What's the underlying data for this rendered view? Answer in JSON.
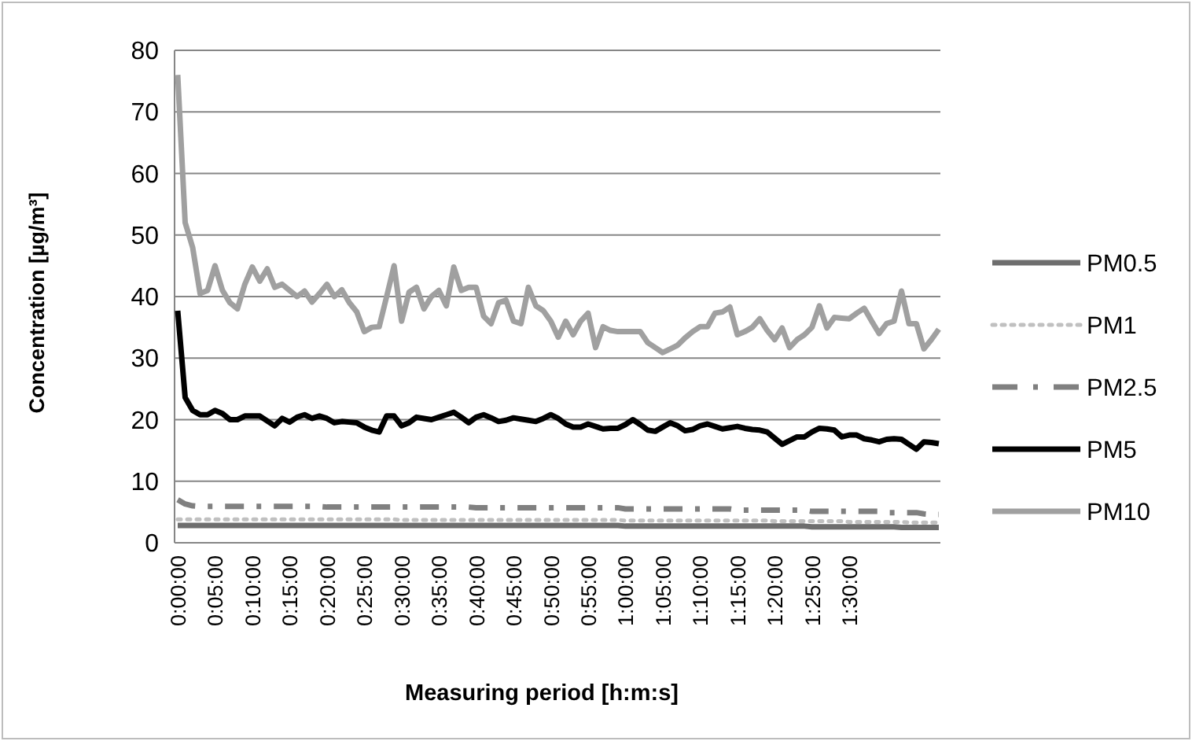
{
  "chart_data": {
    "type": "line",
    "xlabel": "Measuring period [h:m:s]",
    "ylabel": "Concentration [µg/m³]",
    "categories": [
      "0:00:00",
      null,
      null,
      null,
      null,
      "0:05:00",
      null,
      null,
      null,
      null,
      "0:10:00",
      null,
      null,
      null,
      null,
      "0:15:00",
      null,
      null,
      null,
      null,
      "0:20:00",
      null,
      null,
      null,
      null,
      "0:25:00",
      null,
      null,
      null,
      null,
      "0:30:00",
      null,
      null,
      null,
      null,
      "0:35:00",
      null,
      null,
      null,
      null,
      "0:40:00",
      null,
      null,
      null,
      null,
      "0:45:00",
      null,
      null,
      null,
      null,
      "0:50:00",
      null,
      null,
      null,
      null,
      "0:55:00",
      null,
      null,
      null,
      null,
      "1:00:00",
      null,
      null,
      null,
      null,
      "1:05:00",
      null,
      null,
      null,
      null,
      "1:10:00",
      null,
      null,
      null,
      null,
      "1:15:00",
      null,
      null,
      null,
      null,
      "1:20:00",
      null,
      null,
      null,
      null,
      "1:25:00",
      null,
      null,
      null,
      null,
      "1:30:00",
      null,
      null,
      null,
      null,
      null,
      null,
      null,
      null,
      null,
      null,
      null,
      null
    ],
    "ylim": [
      0,
      80
    ],
    "yticks": [
      0,
      10,
      20,
      30,
      40,
      50,
      60,
      70,
      80
    ],
    "grid": "y",
    "legend": "right",
    "marker": "none",
    "series": [
      {
        "name": "PM0.5",
        "color": "#6e6e6e",
        "line_style": "solid",
        "values": [
          2.8,
          2.8,
          2.8,
          2.8,
          2.8,
          2.8,
          2.8,
          2.8,
          2.8,
          2.8,
          2.8,
          2.8,
          2.8,
          2.8,
          2.8,
          2.8,
          2.8,
          2.8,
          2.8,
          2.8,
          2.8,
          2.8,
          2.8,
          2.8,
          2.8,
          2.8,
          2.8,
          2.8,
          2.8,
          2.8,
          2.8,
          2.8,
          2.8,
          2.8,
          2.8,
          2.8,
          2.8,
          2.8,
          2.8,
          2.8,
          2.8,
          2.8,
          2.8,
          2.8,
          2.8,
          2.8,
          2.8,
          2.8,
          2.8,
          2.8,
          2.8,
          2.8,
          2.8,
          2.8,
          2.8,
          2.8,
          2.8,
          2.8,
          2.8,
          2.8,
          2.7,
          2.7,
          2.7,
          2.7,
          2.7,
          2.7,
          2.7,
          2.7,
          2.7,
          2.7,
          2.7,
          2.7,
          2.7,
          2.7,
          2.7,
          2.7,
          2.7,
          2.7,
          2.7,
          2.7,
          2.7,
          2.7,
          2.7,
          2.7,
          2.7,
          2.6,
          2.6,
          2.6,
          2.6,
          2.6,
          2.6,
          2.6,
          2.6,
          2.6,
          2.6,
          2.6,
          2.6,
          2.5,
          2.5,
          2.5,
          2.5,
          2.5,
          2.5
        ]
      },
      {
        "name": "PM1",
        "color": "#c0c0c0",
        "line_style": "dotted",
        "values": [
          3.8,
          3.8,
          3.8,
          3.8,
          3.8,
          3.8,
          3.8,
          3.8,
          3.8,
          3.8,
          3.8,
          3.8,
          3.8,
          3.8,
          3.8,
          3.8,
          3.8,
          3.8,
          3.8,
          3.8,
          3.8,
          3.8,
          3.8,
          3.8,
          3.8,
          3.8,
          3.8,
          3.8,
          3.8,
          3.8,
          3.7,
          3.7,
          3.7,
          3.7,
          3.7,
          3.7,
          3.7,
          3.7,
          3.7,
          3.7,
          3.7,
          3.7,
          3.7,
          3.7,
          3.7,
          3.7,
          3.7,
          3.7,
          3.7,
          3.7,
          3.7,
          3.7,
          3.7,
          3.7,
          3.7,
          3.7,
          3.7,
          3.7,
          3.7,
          3.7,
          3.6,
          3.6,
          3.6,
          3.6,
          3.6,
          3.6,
          3.6,
          3.6,
          3.6,
          3.6,
          3.6,
          3.6,
          3.6,
          3.6,
          3.6,
          3.6,
          3.6,
          3.6,
          3.6,
          3.6,
          3.5,
          3.5,
          3.5,
          3.5,
          3.5,
          3.5,
          3.5,
          3.5,
          3.5,
          3.5,
          3.4,
          3.4,
          3.4,
          3.4,
          3.4,
          3.4,
          3.4,
          3.4,
          3.3,
          3.3,
          3.3,
          3.3,
          3.3
        ]
      },
      {
        "name": "PM2.5",
        "color": "#808080",
        "line_style": "dashed",
        "values": [
          7,
          6.3,
          6,
          5.9,
          5.9,
          5.9,
          5.9,
          5.9,
          5.9,
          5.9,
          5.9,
          5.9,
          5.9,
          5.9,
          5.9,
          5.9,
          5.9,
          5.9,
          5.9,
          5.9,
          5.8,
          5.8,
          5.8,
          5.8,
          5.8,
          5.8,
          5.8,
          5.8,
          5.8,
          5.8,
          5.8,
          5.8,
          5.8,
          5.8,
          5.8,
          5.8,
          5.8,
          5.8,
          5.8,
          5.8,
          5.7,
          5.7,
          5.7,
          5.7,
          5.7,
          5.7,
          5.7,
          5.7,
          5.7,
          5.7,
          5.7,
          5.7,
          5.7,
          5.7,
          5.7,
          5.7,
          5.7,
          5.7,
          5.7,
          5.7,
          5.5,
          5.5,
          5.5,
          5.5,
          5.5,
          5.5,
          5.5,
          5.5,
          5.5,
          5.5,
          5.5,
          5.5,
          5.5,
          5.5,
          5.5,
          5.3,
          5.3,
          5.3,
          5.3,
          5.3,
          5.3,
          5.3,
          5.3,
          5.3,
          5.3,
          5.1,
          5.1,
          5.1,
          5.1,
          5.1,
          5.1,
          5.1,
          5.1,
          5.1,
          5.1,
          4.9,
          4.9,
          4.9,
          4.9,
          4.9,
          4.7,
          4.6,
          4.6
        ]
      },
      {
        "name": "PM5",
        "color": "#000000",
        "line_style": "solid",
        "values": [
          37.7,
          23.6,
          21.5,
          20.8,
          20.8,
          21.5,
          21,
          20,
          20,
          20.6,
          20.6,
          20.6,
          19.8,
          19,
          20.2,
          19.6,
          20.4,
          20.8,
          20.2,
          20.6,
          20.2,
          19.5,
          19.7,
          19.6,
          19.5,
          18.8,
          18.3,
          18,
          20.6,
          20.6,
          19,
          19.5,
          20.4,
          20.2,
          20,
          20.4,
          20.8,
          21.2,
          20.4,
          19.5,
          20.4,
          20.8,
          20.3,
          19.7,
          19.9,
          20.3,
          20.1,
          19.9,
          19.7,
          20.2,
          20.8,
          20.2,
          19.3,
          18.8,
          18.8,
          19.3,
          18.9,
          18.5,
          18.6,
          18.6,
          19.2,
          20,
          19.2,
          18.3,
          18.1,
          18.8,
          19.5,
          19,
          18.2,
          18.4,
          19,
          19.3,
          18.9,
          18.5,
          18.7,
          18.9,
          18.6,
          18.4,
          18.3,
          18,
          17,
          16,
          16.6,
          17.2,
          17.2,
          18,
          18.6,
          18.5,
          18.3,
          17.2,
          17.5,
          17.5,
          16.9,
          16.7,
          16.4,
          16.8,
          16.9,
          16.8,
          16,
          15.2,
          16.4,
          16.3,
          16.1
        ]
      },
      {
        "name": "PM10",
        "color": "#a0a0a0",
        "line_style": "solid",
        "values": [
          76,
          52,
          48,
          40.5,
          41,
          45,
          41,
          39,
          38,
          42,
          44.8,
          42.5,
          44.5,
          41.5,
          42,
          41,
          40,
          40.9,
          39.1,
          40.5,
          42,
          40,
          41.1,
          39,
          37.5,
          34.3,
          35,
          35.1,
          40,
          45,
          36,
          40.7,
          41.5,
          38,
          40,
          41,
          38.5,
          44.8,
          41,
          41.5,
          41.5,
          36.8,
          35.6,
          39,
          39.4,
          36,
          35.6,
          41.5,
          38.5,
          37.7,
          36,
          33.4,
          36,
          33.8,
          36,
          37.3,
          31.7,
          35.1,
          34.5,
          34.3,
          34.3,
          34.3,
          34.3,
          32.5,
          31.7,
          30.9,
          31.5,
          32.1,
          33.3,
          34.3,
          35.1,
          35.1,
          37.3,
          37.5,
          38.3,
          33.8,
          34.3,
          35,
          36.4,
          34.5,
          33,
          34.9,
          31.7,
          33,
          33.8,
          35,
          38.5,
          34.9,
          36.6,
          36.5,
          36.4,
          37.3,
          38.1,
          36,
          34,
          35.6,
          36,
          40.9,
          35.6,
          35.6,
          31.5,
          33,
          34.7
        ]
      }
    ]
  }
}
